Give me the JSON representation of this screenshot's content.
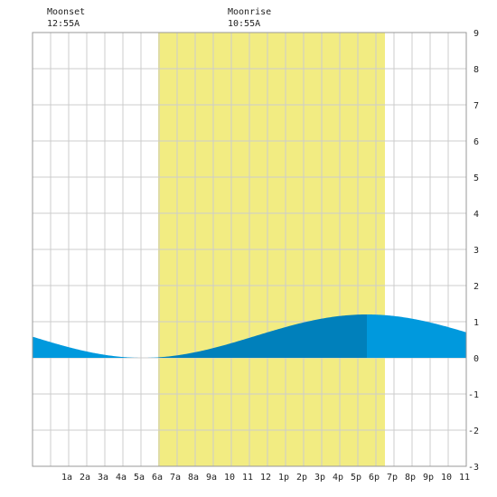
{
  "moon_events": [
    {
      "label": "Moonset",
      "time": "12:55A",
      "hour": 0.917
    },
    {
      "label": "Moonrise",
      "time": "10:55A",
      "hour": 10.917
    }
  ],
  "chart_data": {
    "type": "area",
    "title": "",
    "xlabel": "",
    "ylabel": "",
    "xlim": [
      -0.9,
      23.1
    ],
    "ylim": [
      -3,
      9
    ],
    "grid": true,
    "x_ticks": [
      {
        "hour": 1,
        "label": "1a"
      },
      {
        "hour": 2,
        "label": "2a"
      },
      {
        "hour": 3,
        "label": "3a"
      },
      {
        "hour": 4,
        "label": "4a"
      },
      {
        "hour": 5,
        "label": "5a"
      },
      {
        "hour": 6,
        "label": "6a"
      },
      {
        "hour": 7,
        "label": "7a"
      },
      {
        "hour": 8,
        "label": "8a"
      },
      {
        "hour": 9,
        "label": "9a"
      },
      {
        "hour": 10,
        "label": "10"
      },
      {
        "hour": 11,
        "label": "11"
      },
      {
        "hour": 12,
        "label": "12"
      },
      {
        "hour": 13,
        "label": "1p"
      },
      {
        "hour": 14,
        "label": "2p"
      },
      {
        "hour": 15,
        "label": "3p"
      },
      {
        "hour": 16,
        "label": "4p"
      },
      {
        "hour": 17,
        "label": "5p"
      },
      {
        "hour": 18,
        "label": "6p"
      },
      {
        "hour": 19,
        "label": "7p"
      },
      {
        "hour": 20,
        "label": "8p"
      },
      {
        "hour": 21,
        "label": "9p"
      },
      {
        "hour": 22,
        "label": "10"
      },
      {
        "hour": 23,
        "label": "11"
      }
    ],
    "y_ticks": [
      -3,
      -2,
      -1,
      0,
      1,
      2,
      3,
      4,
      5,
      6,
      7,
      8,
      9
    ],
    "daylight": {
      "start_hour": 6.05,
      "end_hour": 18.6,
      "color": "#f2ec82"
    },
    "tide": {
      "low_hour": 5.2,
      "low_height": 0.0,
      "high_hour": 17.6,
      "high_height": 1.2,
      "start_height": 0.73,
      "end_height": 0.95,
      "color_night": "#0099dd",
      "color_day": "#0080bb"
    }
  }
}
